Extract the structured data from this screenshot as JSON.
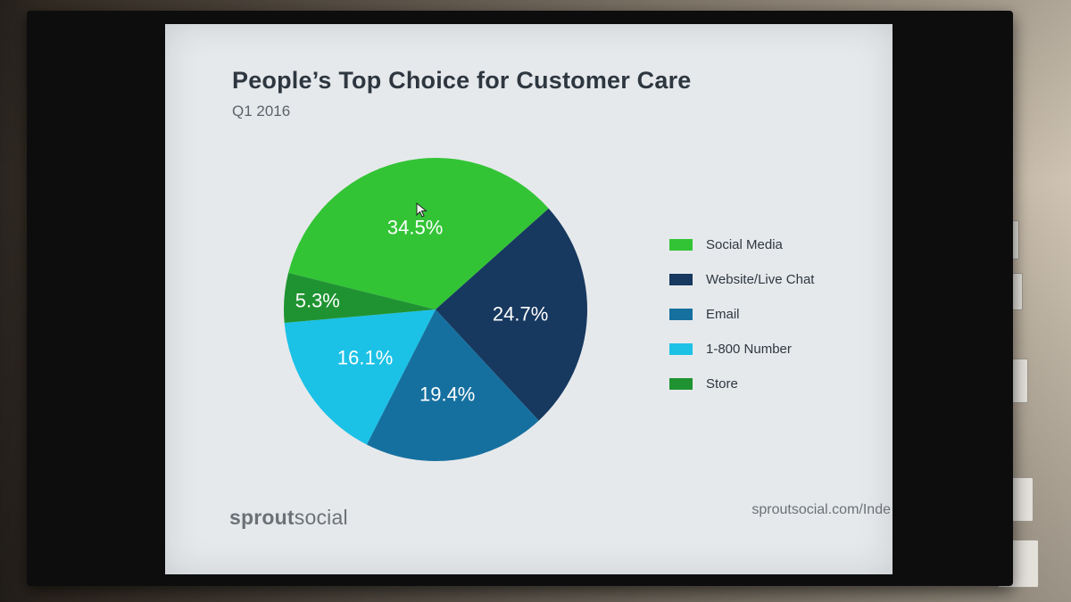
{
  "slide": {
    "title": "People’s Top Choice for Customer Care",
    "subtitle": "Q1 2016",
    "logo_part1": "sprout",
    "logo_part2": "social",
    "url": "sproutsocial.com/Inde"
  },
  "colors": {
    "social_media": "#33c436",
    "website_live_chat": "#17385f",
    "email": "#15709f",
    "number_1800": "#1cc1e6",
    "store": "#1f9331"
  },
  "chart_data": {
    "type": "pie",
    "title": "People’s Top Choice for Customer Care",
    "subtitle": "Q1 2016",
    "legend_position": "right",
    "categories": [
      "Social Media",
      "Website/Live Chat",
      "Email",
      "1-800 Number",
      "Store"
    ],
    "values": [
      34.5,
      24.7,
      19.4,
      16.1,
      5.3
    ],
    "labels": [
      "34.5%",
      "24.7%",
      "19.4%",
      "16.1%",
      "5.3%"
    ],
    "colors": [
      "#33c436",
      "#17385f",
      "#15709f",
      "#1cc1e6",
      "#1f9331"
    ]
  }
}
